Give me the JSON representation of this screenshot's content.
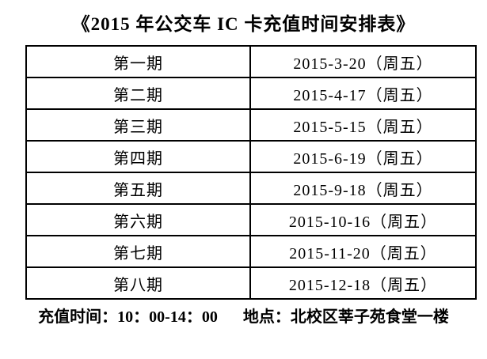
{
  "page": {
    "title": "《2015 年公交车 IC 卡充值时间安排表》"
  },
  "schedule_table": {
    "rows": [
      {
        "period": "第一期",
        "date": "2015-3-20（周五）"
      },
      {
        "period": "第二期",
        "date": "2015-4-17（周五）"
      },
      {
        "period": "第三期",
        "date": "2015-5-15（周五）"
      },
      {
        "period": "第四期",
        "date": "2015-6-19（周五）"
      },
      {
        "period": "第五期",
        "date": "2015-9-18（周五）"
      },
      {
        "period": "第六期",
        "date": "2015-10-16（周五）"
      },
      {
        "period": "第七期",
        "date": "2015-11-20（周五）"
      },
      {
        "period": "第八期",
        "date": "2015-12-18（周五）"
      }
    ]
  },
  "footer": {
    "time": "充值时间：10：00-14：00",
    "location": "地点：北校区莘子苑食堂一楼"
  },
  "colors": {
    "text": "#000000",
    "background": "#ffffff",
    "border": "#000000"
  }
}
